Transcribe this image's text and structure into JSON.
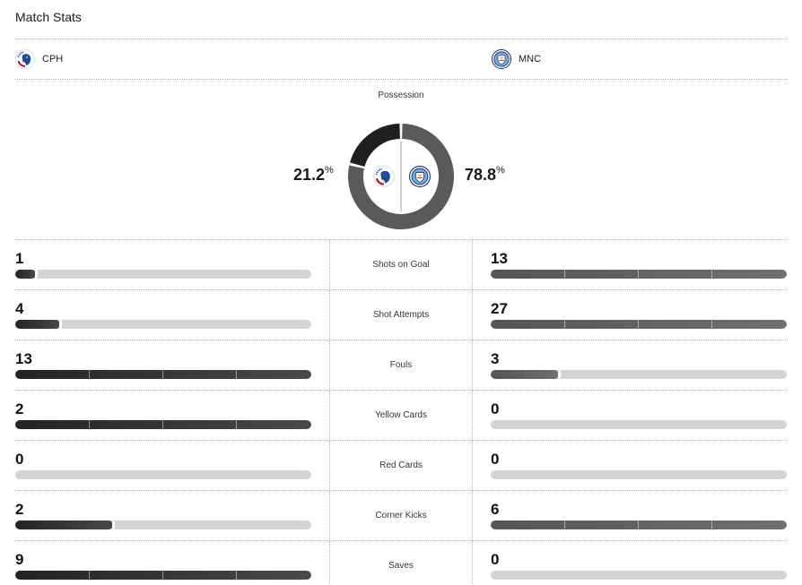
{
  "header": {
    "title": "Match Stats"
  },
  "teams": {
    "home": {
      "abbr": "CPH",
      "logo_icon": "fc-copenhagen-crest-icon"
    },
    "away": {
      "abbr": "MNC",
      "logo_icon": "man-city-crest-icon"
    }
  },
  "possession": {
    "label": "Possession",
    "home_value": "21.2",
    "away_value": "78.8",
    "unit": "%",
    "home_fraction": 0.212,
    "away_fraction": 0.788
  },
  "stats": [
    {
      "label": "Shots on Goal",
      "home": "1",
      "away": "13",
      "home_fill": 0.07,
      "away_fill": 1.0
    },
    {
      "label": "Shot Attempts",
      "home": "4",
      "away": "27",
      "home_fill": 0.15,
      "away_fill": 1.0
    },
    {
      "label": "Fouls",
      "home": "13",
      "away": "3",
      "home_fill": 1.0,
      "away_fill": 0.23
    },
    {
      "label": "Yellow Cards",
      "home": "2",
      "away": "0",
      "home_fill": 1.0,
      "away_fill": 0.0
    },
    {
      "label": "Red Cards",
      "home": "0",
      "away": "0",
      "home_fill": 0.0,
      "away_fill": 0.0
    },
    {
      "label": "Corner Kicks",
      "home": "2",
      "away": "6",
      "home_fill": 0.33,
      "away_fill": 1.0
    },
    {
      "label": "Saves",
      "home": "9",
      "away": "0",
      "home_fill": 1.0,
      "away_fill": 0.0
    }
  ],
  "colors": {
    "home_bar": "#2a2a2a",
    "away_bar": "#5f5f5f",
    "track": "#d4d4d4",
    "donut_home": "#1f1f1f",
    "donut_away": "#5a5a5a"
  }
}
